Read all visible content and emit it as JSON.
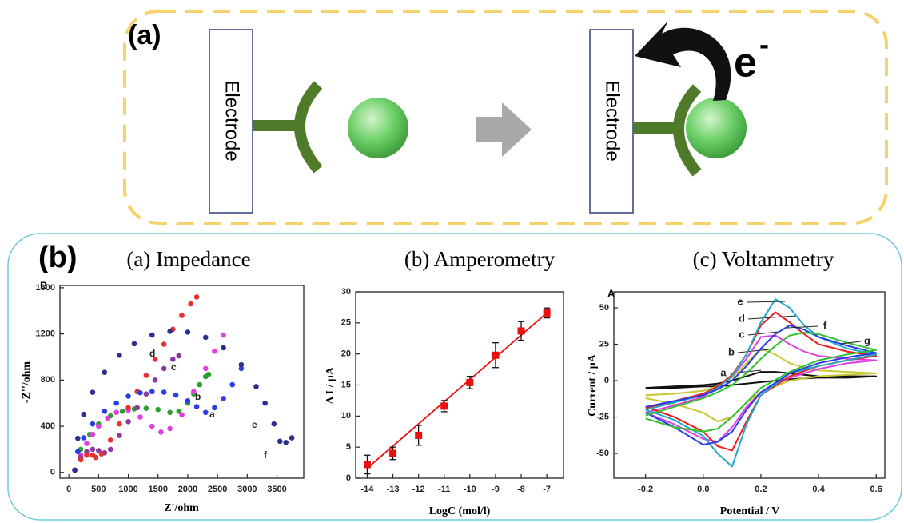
{
  "diagram": {
    "label": "(a)",
    "left_electrode": "Electrode",
    "right_electrode": "Electrode",
    "electron": "e",
    "electron_charge": "-"
  },
  "panel_b": {
    "label": "(b)"
  },
  "chart_data": [
    {
      "type": "scatter",
      "title": "(a) Impedance",
      "panel_label": "B",
      "xlabel": "Z'/ohm",
      "ylabel": "-Z''/ohm",
      "xlim": [
        -150,
        3950
      ],
      "ylim": [
        -50,
        1620
      ],
      "xticks": [
        0,
        500,
        1000,
        1500,
        2000,
        2500,
        3000,
        3500
      ],
      "yticks": [
        0,
        400,
        800,
        1200,
        1600
      ],
      "series": [
        {
          "name": "a",
          "color": "#2e9e2e",
          "x": [
            100,
            200,
            350,
            500,
            700,
            900,
            1100,
            1300,
            1500,
            1700,
            1850,
            2000,
            2100,
            2200,
            2300,
            2350
          ],
          "values": [
            20,
            200,
            330,
            420,
            490,
            530,
            550,
            555,
            545,
            520,
            530,
            600,
            680,
            760,
            830,
            850
          ]
        },
        {
          "name": "b",
          "color": "#e040e0",
          "x": [
            100,
            200,
            300,
            400,
            500,
            650,
            800,
            1000,
            1200,
            1400,
            1550,
            1700,
            1900,
            2100,
            2300,
            2450,
            2600
          ],
          "values": [
            20,
            150,
            250,
            330,
            400,
            470,
            520,
            540,
            480,
            400,
            350,
            380,
            500,
            700,
            900,
            1050,
            1190
          ]
        },
        {
          "name": "c",
          "color": "#8b3a9e",
          "x": [
            100,
            200,
            300,
            400,
            500,
            600,
            700,
            850,
            1000,
            1150,
            1300,
            1450,
            1600,
            1750,
            1850
          ],
          "values": [
            20,
            130,
            180,
            200,
            190,
            170,
            200,
            320,
            440,
            560,
            680,
            800,
            900,
            980,
            1010
          ]
        },
        {
          "name": "d",
          "color": "#e83030",
          "x": [
            100,
            200,
            300,
            400,
            450,
            550,
            700,
            850,
            1000,
            1150,
            1300,
            1450,
            1600,
            1750,
            1900,
            2050,
            2150
          ],
          "values": [
            20,
            110,
            150,
            150,
            130,
            160,
            280,
            420,
            560,
            700,
            840,
            980,
            1110,
            1240,
            1360,
            1460,
            1520
          ]
        },
        {
          "name": "e",
          "color": "#2a3ee8",
          "x": [
            100,
            150,
            250,
            400,
            600,
            800,
            1000,
            1200,
            1400,
            1600,
            1800,
            2000,
            2150,
            2300,
            2450,
            2600,
            2750,
            2900
          ],
          "values": [
            20,
            180,
            300,
            420,
            530,
            600,
            660,
            690,
            700,
            695,
            670,
            620,
            570,
            520,
            560,
            640,
            760,
            900
          ]
        },
        {
          "name": "f",
          "color": "#2b2f8f",
          "x": [
            100,
            150,
            250,
            400,
            600,
            850,
            1100,
            1400,
            1700,
            2000,
            2300,
            2600,
            2900,
            3150,
            3300,
            3450,
            3550,
            3650,
            3750
          ],
          "values": [
            20,
            295,
            503,
            694,
            867,
            1015,
            1115,
            1190,
            1222,
            1215,
            1170,
            1080,
            933,
            744,
            600,
            420,
            270,
            260,
            300
          ]
        }
      ]
    },
    {
      "type": "errorbar",
      "title": "(b) Amperometry",
      "xlabel": "LogC (mol/l)",
      "ylabel": "Δ I / μA",
      "xlim": [
        -14.45,
        -6.35
      ],
      "ylim": [
        0,
        30
      ],
      "xticks": [
        -14,
        -13,
        -12,
        -11,
        -10,
        -9,
        -8,
        -7
      ],
      "yticks": [
        0,
        5,
        10,
        15,
        20,
        25,
        30
      ],
      "color": "#e81010",
      "x": [
        -14,
        -13,
        -12,
        -11,
        -10,
        -9,
        -8,
        -7
      ],
      "values": [
        2.2,
        4.0,
        6.9,
        11.6,
        15.4,
        19.8,
        23.7,
        26.6
      ],
      "errors": [
        1.5,
        1.0,
        1.6,
        0.9,
        1.0,
        2.0,
        1.5,
        0.8
      ],
      "fit": {
        "x": [
          -14,
          -7
        ],
        "values": [
          1.6,
          26.6
        ]
      }
    },
    {
      "type": "line",
      "title": "(c) Voltammetry",
      "panel_label": "A",
      "xlabel": "Potential / V",
      "ylabel": "Current / μA",
      "xlim": [
        -0.31,
        0.63
      ],
      "ylim": [
        -67,
        61
      ],
      "xticks": [
        -0.2,
        {
          "value": 0,
          "label": "0.0"
        },
        0.2,
        0.4,
        0.6
      ],
      "yticks": [
        -50,
        -25,
        0,
        25,
        50
      ],
      "series": [
        {
          "name": "a",
          "color": "#111111",
          "x": [
            -0.2,
            -0.1,
            0,
            0.05,
            0.1,
            0.15,
            0.2,
            0.25,
            0.3,
            0.35,
            0.4,
            0.5,
            0.6,
            0.5,
            0.4,
            0.3,
            0.2,
            0.15,
            0.1,
            0.05,
            0,
            -0.1,
            -0.2
          ],
          "values": [
            -5,
            -4,
            -3,
            -2,
            0,
            3,
            6,
            6,
            5,
            4,
            3,
            3,
            3,
            2,
            2,
            1,
            -1,
            -2,
            -3,
            -4,
            -4,
            -5,
            -5
          ]
        },
        {
          "name": "b",
          "color": "#c8c832",
          "x": [
            -0.2,
            -0.1,
            0,
            0.05,
            0.1,
            0.15,
            0.2,
            0.25,
            0.3,
            0.35,
            0.4,
            0.5,
            0.6,
            0.5,
            0.4,
            0.3,
            0.2,
            0.15,
            0.1,
            0.05,
            0,
            -0.1,
            -0.2
          ],
          "values": [
            -10,
            -9,
            -7,
            -4,
            2,
            12,
            22,
            18,
            12,
            9,
            7,
            6,
            5,
            4,
            3,
            0,
            -8,
            -15,
            -25,
            -28,
            -22,
            -16,
            -12
          ]
        },
        {
          "name": "c",
          "color": "#e040e0",
          "x": [
            -0.2,
            -0.1,
            0,
            0.05,
            0.1,
            0.15,
            0.2,
            0.25,
            0.3,
            0.35,
            0.4,
            0.5,
            0.6,
            0.5,
            0.4,
            0.3,
            0.2,
            0.15,
            0.1,
            0.05,
            0,
            -0.1,
            -0.2
          ],
          "values": [
            -22,
            -17,
            -11,
            -5,
            3,
            15,
            30,
            31,
            25,
            20,
            17,
            15,
            14,
            12,
            8,
            2,
            -8,
            -18,
            -32,
            -42,
            -40,
            -30,
            -22
          ]
        },
        {
          "name": "d",
          "color": "#e82020",
          "x": [
            -0.2,
            -0.1,
            0,
            0.05,
            0.1,
            0.15,
            0.2,
            0.25,
            0.3,
            0.35,
            0.4,
            0.5,
            0.6,
            0.5,
            0.4,
            0.3,
            0.2,
            0.15,
            0.1,
            0.05,
            0,
            -0.1,
            -0.2
          ],
          "values": [
            -19,
            -14,
            -9,
            -4,
            4,
            18,
            38,
            47,
            40,
            32,
            25,
            20,
            17,
            14,
            10,
            3,
            -10,
            -28,
            -48,
            -45,
            -35,
            -25,
            -18
          ]
        },
        {
          "name": "e",
          "color": "#22a8c8",
          "x": [
            -0.2,
            -0.1,
            0,
            0.05,
            0.1,
            0.15,
            0.2,
            0.25,
            0.3,
            0.35,
            0.4,
            0.5,
            0.6,
            0.5,
            0.4,
            0.3,
            0.2,
            0.15,
            0.1,
            0.05,
            0,
            -0.1,
            -0.2
          ],
          "values": [
            -20,
            -15,
            -10,
            -5,
            3,
            18,
            40,
            56,
            50,
            38,
            30,
            22,
            18,
            14,
            10,
            5,
            -10,
            -30,
            -59,
            -50,
            -38,
            -27,
            -20
          ]
        },
        {
          "name": "f",
          "color": "#2a3ee8",
          "x": [
            -0.2,
            -0.1,
            0,
            0.05,
            0.1,
            0.15,
            0.2,
            0.25,
            0.3,
            0.35,
            0.4,
            0.5,
            0.6,
            0.5,
            0.4,
            0.3,
            0.2,
            0.15,
            0.1,
            0.05,
            0,
            -0.1,
            -0.2
          ],
          "values": [
            -18,
            -14,
            -10,
            -6,
            0,
            10,
            22,
            32,
            38,
            35,
            30,
            24,
            19,
            16,
            12,
            5,
            -8,
            -20,
            -35,
            -42,
            -44,
            -32,
            -22
          ]
        },
        {
          "name": "g",
          "color": "#30c030",
          "x": [
            -0.2,
            -0.1,
            0,
            0.05,
            0.1,
            0.15,
            0.2,
            0.25,
            0.3,
            0.35,
            0.4,
            0.5,
            0.6,
            0.5,
            0.4,
            0.3,
            0.2,
            0.15,
            0.1,
            0.05,
            0,
            -0.1,
            -0.2
          ],
          "values": [
            -24,
            -18,
            -12,
            -8,
            -3,
            5,
            15,
            24,
            31,
            33,
            32,
            26,
            21,
            18,
            14,
            6,
            -5,
            -15,
            -25,
            -33,
            -35,
            -32,
            -26
          ]
        }
      ]
    }
  ]
}
